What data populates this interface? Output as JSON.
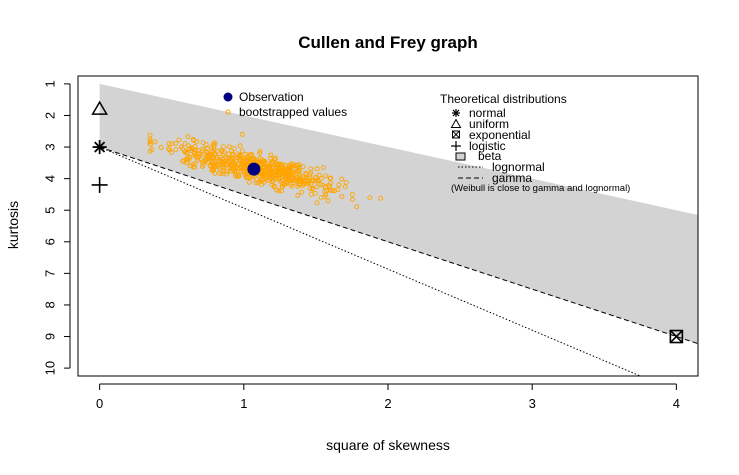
{
  "chart_data": {
    "type": "scatter",
    "title": "Cullen and Frey graph",
    "xlabel": "square of skewness",
    "ylabel": "kurtosis",
    "xlim": [
      -0.15,
      4.15
    ],
    "ylim": [
      10.25,
      0.75
    ],
    "x_ticks": [
      0,
      1,
      2,
      3,
      4
    ],
    "y_ticks": [
      1,
      2,
      3,
      4,
      5,
      6,
      7,
      8,
      9,
      10
    ],
    "x_tick_labels": [
      "0",
      "1",
      "2",
      "3",
      "4"
    ],
    "y_tick_labels": [
      "1",
      "2",
      "3",
      "4",
      "5",
      "6",
      "7",
      "8",
      "9",
      "10"
    ],
    "observation": {
      "x": 1.07,
      "y": 3.7,
      "color": "#000080",
      "label": "Observation"
    },
    "bootstrap": {
      "label": "bootstrapped values",
      "color": "#FFA500",
      "n": 600,
      "seed": 7,
      "center_x": 1.07,
      "center_y": 3.65,
      "spread_x": 0.28,
      "slope": 1.1,
      "spread_y": 0.22,
      "x_min": 0.35,
      "x_max": 1.95
    },
    "theoretical": {
      "legend_title": "Theoretical distributions",
      "normal": {
        "x": 0,
        "y": 3,
        "label": "normal"
      },
      "uniform": {
        "x": 0,
        "y": 1.8,
        "label": "uniform"
      },
      "exponential": {
        "x": 4,
        "y": 9,
        "label": "exponential"
      },
      "logistic": {
        "x": 0,
        "y": 4.2,
        "label": "logistic"
      },
      "beta": {
        "label": "beta",
        "color": "#D3D3D3",
        "region_top": [
          [
            0,
            1
          ],
          [
            4.15,
            5.15
          ]
        ]
      },
      "lognormal": {
        "label": "lognormal",
        "line": [
          [
            0,
            3
          ],
          [
            3.75,
            10.25
          ]
        ]
      },
      "gamma": {
        "label": "gamma",
        "line": [
          [
            0,
            3
          ],
          [
            4.15,
            9.225
          ]
        ]
      },
      "note": "(Weibull is close to gamma and lognormal)"
    },
    "legend_positions": [
      "top-left",
      "top-right"
    ]
  }
}
